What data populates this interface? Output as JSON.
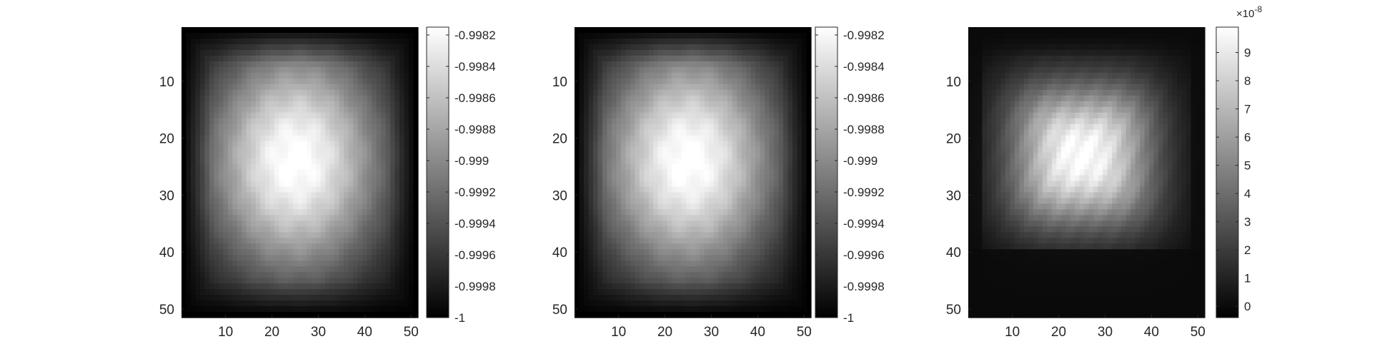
{
  "chart_data": [
    {
      "type": "heatmap",
      "colormap": "gray",
      "grid_size": 51,
      "axis_direction": "y-reversed",
      "x_ticks": [
        "10",
        "20",
        "30",
        "40",
        "50"
      ],
      "y_ticks": [
        "10",
        "20",
        "30",
        "40",
        "50"
      ],
      "clim": [
        -1,
        -0.99815
      ],
      "colorbar_ticks": [
        "-0.9982",
        "-0.9984",
        "-0.9986",
        "-0.9988",
        "-0.999",
        "-0.9992",
        "-0.9994",
        "-0.9996",
        "-0.9998",
        "-1"
      ],
      "colorbar_exponent": "",
      "peak": {
        "x": 25,
        "y": 24,
        "value": -0.99815
      },
      "pattern": "broad smooth blob, dark border"
    },
    {
      "type": "heatmap",
      "colormap": "gray",
      "grid_size": 51,
      "axis_direction": "y-reversed",
      "x_ticks": [
        "10",
        "20",
        "30",
        "40",
        "50"
      ],
      "y_ticks": [
        "10",
        "20",
        "30",
        "40",
        "50"
      ],
      "clim": [
        -1,
        -0.99815
      ],
      "colorbar_ticks": [
        "-0.9982",
        "-0.9984",
        "-0.9986",
        "-0.9988",
        "-0.999",
        "-0.9992",
        "-0.9994",
        "-0.9996",
        "-0.9998",
        "-1"
      ],
      "colorbar_exponent": "",
      "peak": {
        "x": 25,
        "y": 24,
        "value": -0.99815
      },
      "pattern": "broad smooth blob, dark border"
    },
    {
      "type": "heatmap",
      "colormap": "gray",
      "grid_size": 51,
      "axis_direction": "y-reversed",
      "x_ticks": [
        "10",
        "20",
        "30",
        "40",
        "50"
      ],
      "y_ticks": [
        "10",
        "20",
        "30",
        "40",
        "50"
      ],
      "clim": [
        -0.4,
        9.9
      ],
      "colorbar_ticks": [
        "9",
        "8",
        "7",
        "6",
        "5",
        "4",
        "3",
        "2",
        "1",
        "0"
      ],
      "colorbar_exponent": "×10",
      "colorbar_exponent_power": "-8",
      "peak": {
        "x": 25,
        "y": 23,
        "value": 9.9
      },
      "pattern": "compact blob, near zero below row 40"
    }
  ]
}
